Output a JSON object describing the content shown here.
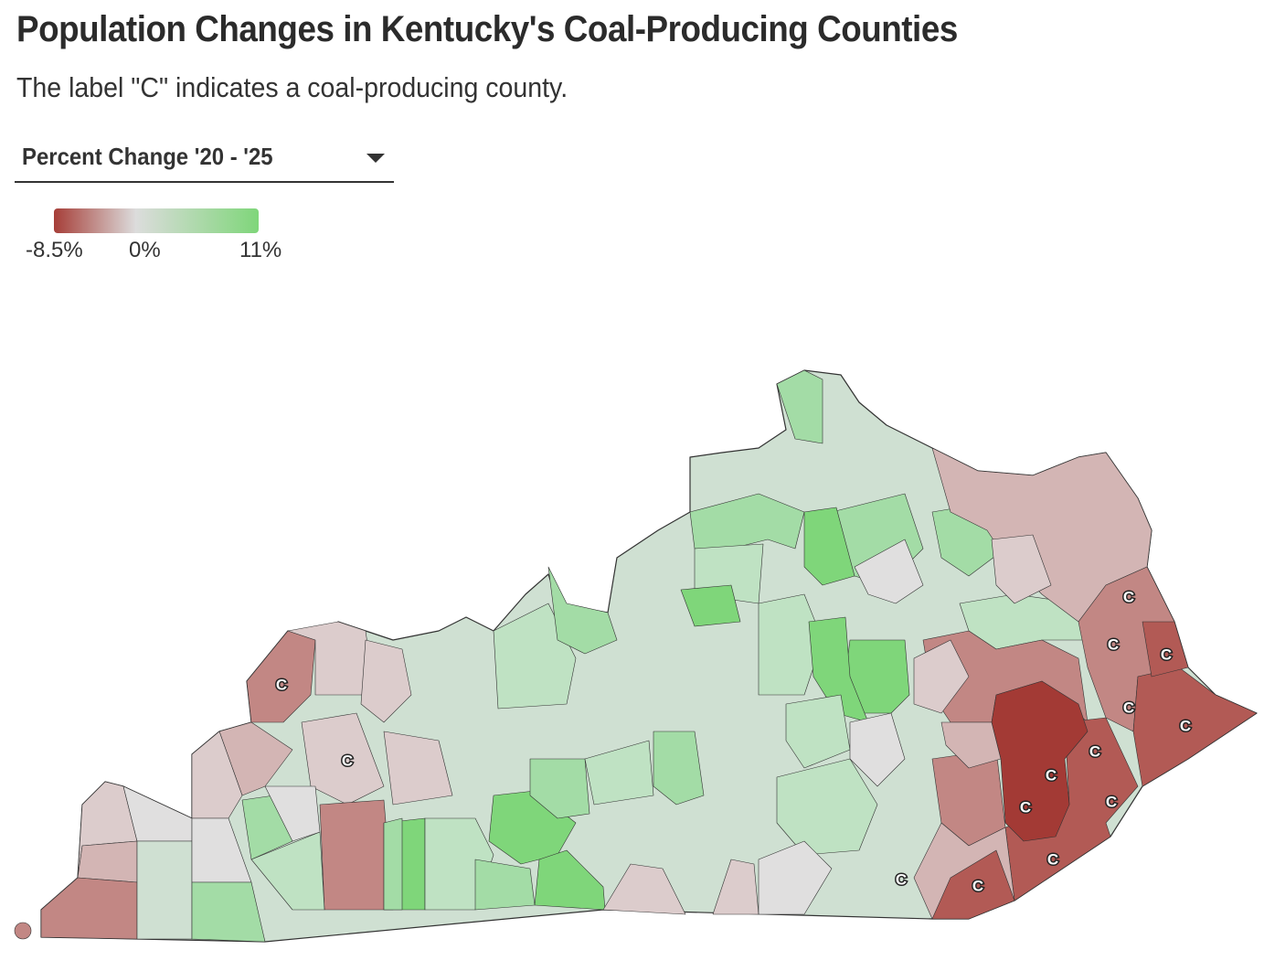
{
  "title": "Population Changes in Kentucky's Coal-Producing Counties",
  "subtitle": "The label \"C\" indicates a coal-producing county.",
  "dropdown": {
    "selected": "Percent Change '20 - '25",
    "icon": "caret-down-icon"
  },
  "legend": {
    "min_label": "-8.5%",
    "mid_label": "0%",
    "max_label": "11%",
    "min": -8.5,
    "mid": 0,
    "max": 11,
    "colors": {
      "low": "#a63e38",
      "mid": "#dcdcdc",
      "high": "#7fd67a"
    }
  },
  "map": {
    "coal_label": "C",
    "palette": {
      "deep_red": "#a33a35",
      "red": "#b25a55",
      "med_red": "#c28784",
      "pink": "#d3b5b4",
      "light_pink": "#dccccc",
      "grey": "#e0dfdf",
      "pale_green": "#cfe0d2",
      "light_green": "#bfe2c3",
      "green": "#a3dca6",
      "bright_green": "#7fd67a"
    }
  }
}
